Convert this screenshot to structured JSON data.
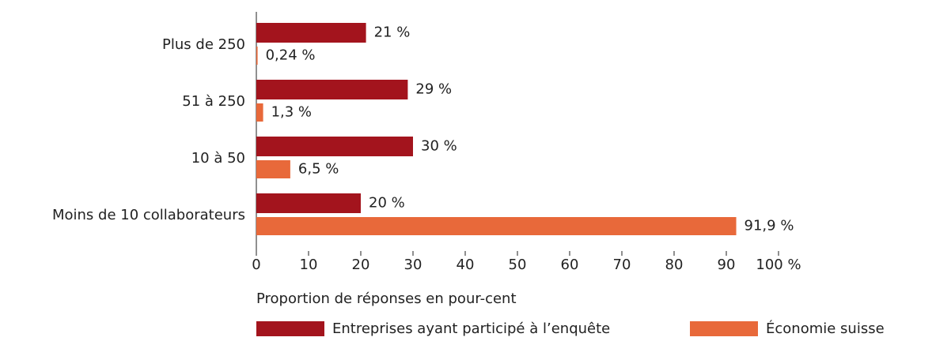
{
  "chart_data": {
    "type": "bar",
    "orientation": "horizontal",
    "categories": [
      "Plus de 250",
      "51 à 250",
      "10 à 50",
      "Moins de 10 collaborateurs"
    ],
    "series": [
      {
        "name": "Entreprises ayant participé à l’enquête",
        "color": "#a3141d",
        "values": [
          21,
          29,
          30,
          20
        ],
        "value_labels": [
          "21 %",
          "29 %",
          "30 %",
          "20 %"
        ]
      },
      {
        "name": "Économie suisse",
        "color": "#e8693a",
        "values": [
          0.24,
          1.3,
          6.5,
          91.9
        ],
        "value_labels": [
          "0,24 %",
          "1,3 %",
          "6,5 %",
          "91,9 %"
        ]
      }
    ],
    "xlim": [
      0,
      100
    ],
    "xticks": [
      0,
      10,
      20,
      30,
      40,
      50,
      60,
      70,
      80,
      90,
      {
        "value": 100,
        "label": "100 %"
      }
    ],
    "xlabel": "Proportion de réponses en pour-cent",
    "legend": "bottom"
  }
}
